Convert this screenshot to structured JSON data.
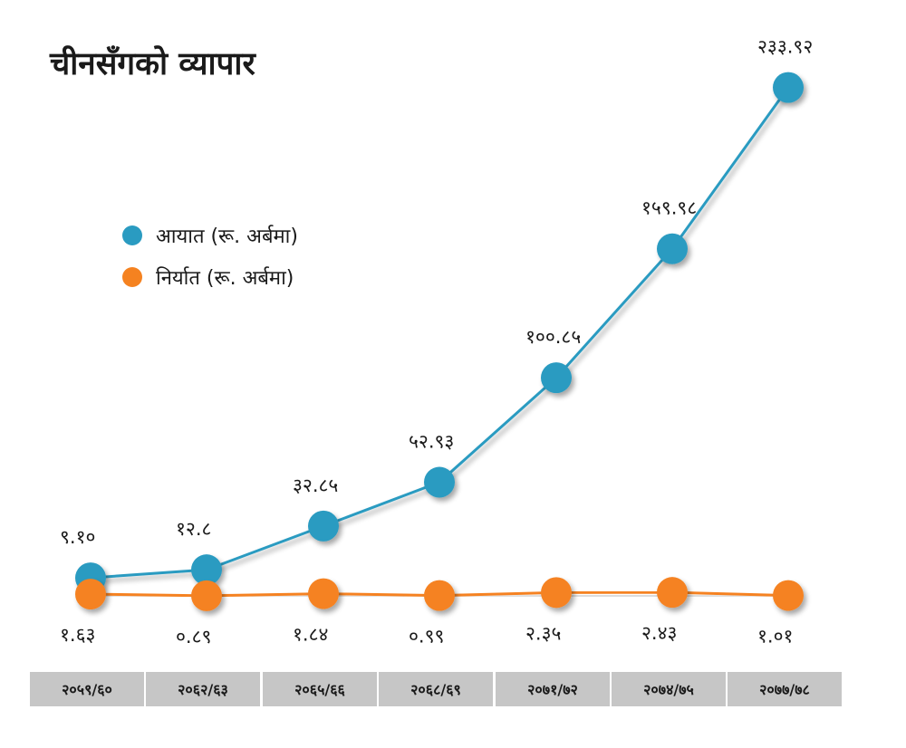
{
  "chart_data": {
    "type": "line",
    "title": "चीनसँगको व्यापार",
    "categories": [
      "२०५९/६०",
      "२०६२/६३",
      "२०६५/६६",
      "२०६८/६९",
      "२०७१/७२",
      "२०७४/७५",
      "२०७७/७८"
    ],
    "series": [
      {
        "name": "आयात (रू. अर्बमा)",
        "color": "#2a9bc1",
        "values": [
          9.1,
          12.8,
          32.85,
          52.93,
          100.85,
          159.98,
          233.92
        ],
        "labels": [
          "९.१०",
          "१२.८",
          "३२.८५",
          "५२.९३",
          "१००.८५",
          "१५९.९८",
          "२३३.९२"
        ]
      },
      {
        "name": "निर्यात (रू. अर्बमा)",
        "color": "#f58220",
        "values": [
          1.63,
          0.89,
          1.84,
          0.99,
          2.35,
          2.43,
          1.01
        ],
        "labels": [
          "१.६३",
          "०.८९",
          "१.८४",
          "०.९९",
          "२.३५",
          "२.४३",
          "१.०१"
        ]
      }
    ],
    "legend": "top-left",
    "grid": false,
    "ylim": [
      0,
      240
    ]
  }
}
